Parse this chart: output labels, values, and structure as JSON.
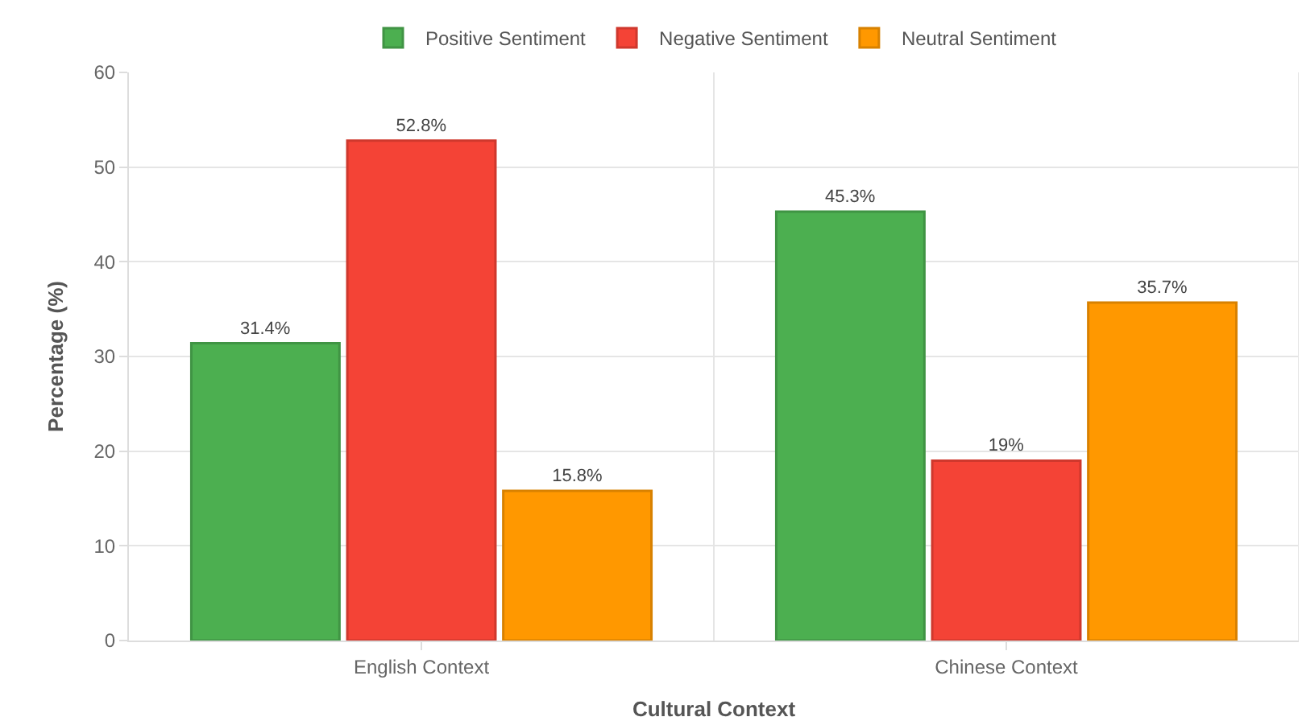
{
  "chart_data": {
    "type": "bar",
    "xlabel": "Cultural Context",
    "ylabel": "Percentage (%)",
    "categories": [
      "English Context",
      "Chinese Context"
    ],
    "series": [
      {
        "name": "Positive Sentiment",
        "color": "#4caf50",
        "values": [
          31.4,
          45.3
        ],
        "value_labels": [
          "31.4%",
          "45.3%"
        ]
      },
      {
        "name": "Negative Sentiment",
        "color": "#f44336",
        "values": [
          52.8,
          19
        ],
        "value_labels": [
          "52.8%",
          "19%"
        ]
      },
      {
        "name": "Neutral Sentiment",
        "color": "#ff9800",
        "values": [
          15.8,
          35.7
        ],
        "value_labels": [
          "15.8%",
          "35.7%"
        ]
      }
    ],
    "ylim": [
      0,
      60
    ],
    "yticks": [
      0,
      10,
      20,
      30,
      40,
      50,
      60
    ],
    "grid": true,
    "legend": "top"
  }
}
